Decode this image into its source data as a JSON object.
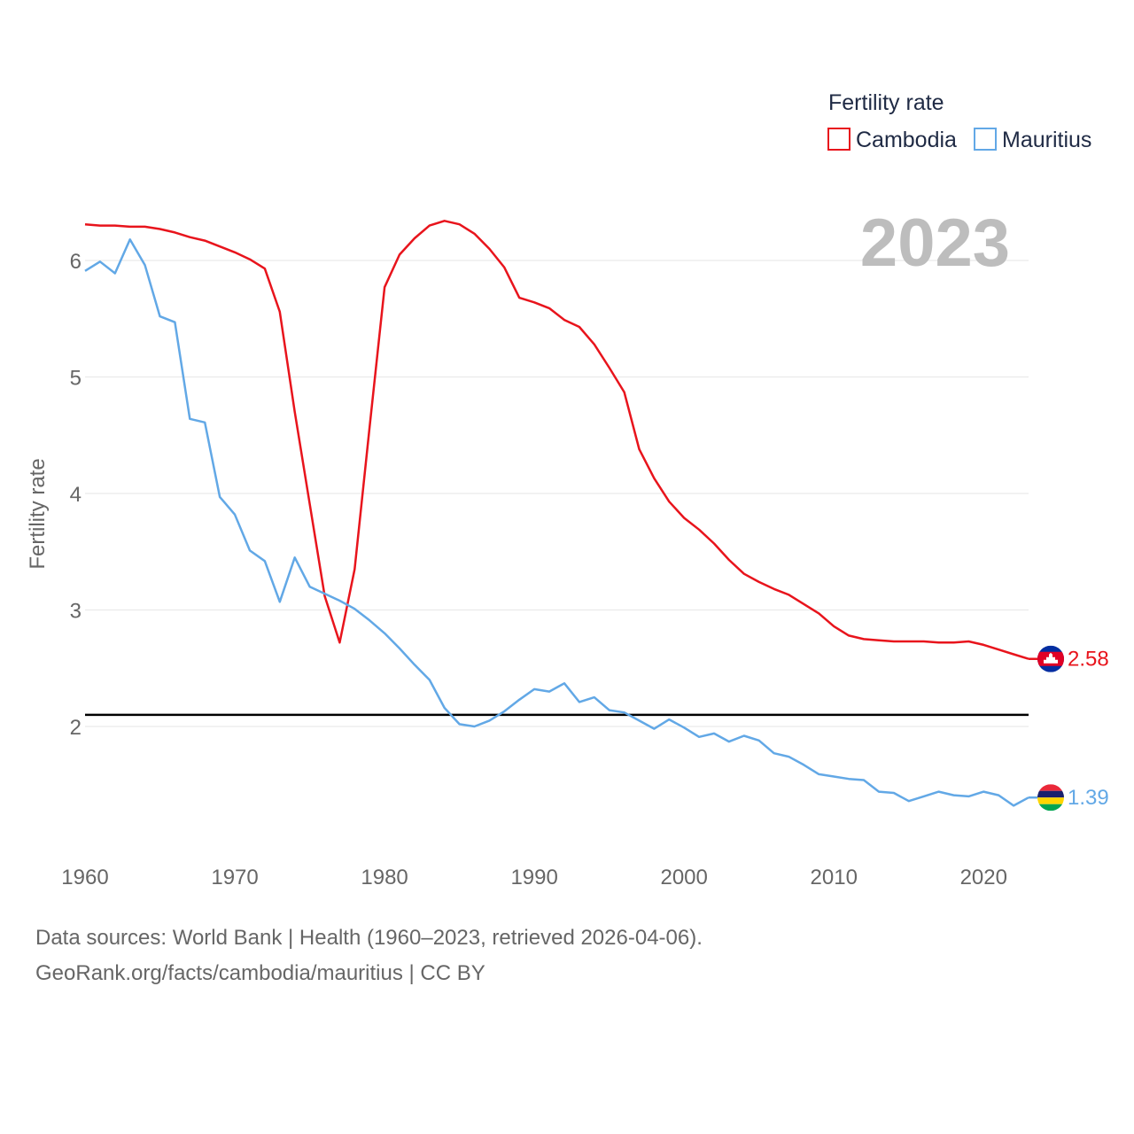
{
  "chart_data": {
    "type": "line",
    "year_label": "2023",
    "ylabel": "Fertility rate",
    "xlabel": "",
    "xlim": [
      1960,
      2023
    ],
    "ylim": [
      1.0,
      6.6
    ],
    "x_ticks": [
      1960,
      1970,
      1980,
      1990,
      2000,
      2010,
      2020
    ],
    "y_ticks": [
      2,
      3,
      4,
      5,
      6
    ],
    "grid": true,
    "reference_line": 2.1,
    "legend": {
      "title": "Fertility rate",
      "position": "top-right"
    },
    "x": [
      1960,
      1961,
      1962,
      1963,
      1964,
      1965,
      1966,
      1967,
      1968,
      1969,
      1970,
      1971,
      1972,
      1973,
      1974,
      1975,
      1976,
      1977,
      1978,
      1979,
      1980,
      1981,
      1982,
      1983,
      1984,
      1985,
      1986,
      1987,
      1988,
      1989,
      1990,
      1991,
      1992,
      1993,
      1994,
      1995,
      1996,
      1997,
      1998,
      1999,
      2000,
      2001,
      2002,
      2003,
      2004,
      2005,
      2006,
      2007,
      2008,
      2009,
      2010,
      2011,
      2012,
      2013,
      2014,
      2015,
      2016,
      2017,
      2018,
      2019,
      2020,
      2021,
      2022,
      2023
    ],
    "series": [
      {
        "name": "Cambodia",
        "color": "#e8141c",
        "end_label": "2.58",
        "values": [
          6.31,
          6.3,
          6.3,
          6.29,
          6.29,
          6.27,
          6.24,
          6.2,
          6.17,
          6.12,
          6.07,
          6.01,
          5.93,
          5.56,
          4.7,
          3.91,
          3.12,
          2.72,
          3.35,
          4.57,
          5.77,
          6.05,
          6.19,
          6.3,
          6.34,
          6.31,
          6.23,
          6.1,
          5.94,
          5.68,
          5.64,
          5.59,
          5.49,
          5.43,
          5.28,
          5.08,
          4.87,
          4.38,
          4.13,
          3.93,
          3.79,
          3.69,
          3.57,
          3.43,
          3.31,
          3.24,
          3.18,
          3.13,
          3.05,
          2.97,
          2.86,
          2.78,
          2.75,
          2.74,
          2.73,
          2.73,
          2.73,
          2.72,
          2.72,
          2.73,
          2.7,
          2.66,
          2.62,
          2.58
        ]
      },
      {
        "name": "Mauritius",
        "color": "#62a8e6",
        "end_label": "1.39",
        "values": [
          5.91,
          5.99,
          5.89,
          6.18,
          5.96,
          5.52,
          5.47,
          4.64,
          4.61,
          3.97,
          3.82,
          3.51,
          3.42,
          3.07,
          3.45,
          3.2,
          3.14,
          3.08,
          3.01,
          2.91,
          2.8,
          2.67,
          2.53,
          2.4,
          2.16,
          2.02,
          2.0,
          2.05,
          2.13,
          2.23,
          2.32,
          2.3,
          2.37,
          2.21,
          2.25,
          2.14,
          2.12,
          2.05,
          1.98,
          2.06,
          1.99,
          1.91,
          1.94,
          1.87,
          1.92,
          1.88,
          1.77,
          1.74,
          1.67,
          1.59,
          1.57,
          1.55,
          1.54,
          1.44,
          1.43,
          1.36,
          1.4,
          1.44,
          1.41,
          1.4,
          1.44,
          1.41,
          1.32,
          1.39
        ]
      }
    ]
  },
  "flags": {
    "cambodia": {
      "name": "Cambodia flag",
      "colors": [
        "#032ea1",
        "#e00025",
        "#ffffff"
      ]
    },
    "mauritius": {
      "name": "Mauritius flag",
      "colors": [
        "#ea2839",
        "#1a206d",
        "#ffd500",
        "#00a551"
      ]
    }
  },
  "footer": {
    "line1": "Data sources: World Bank | Health (1960–2023, retrieved 2026-04-06).",
    "line2": "GeoRank.org/facts/cambodia/mauritius | CC BY"
  }
}
